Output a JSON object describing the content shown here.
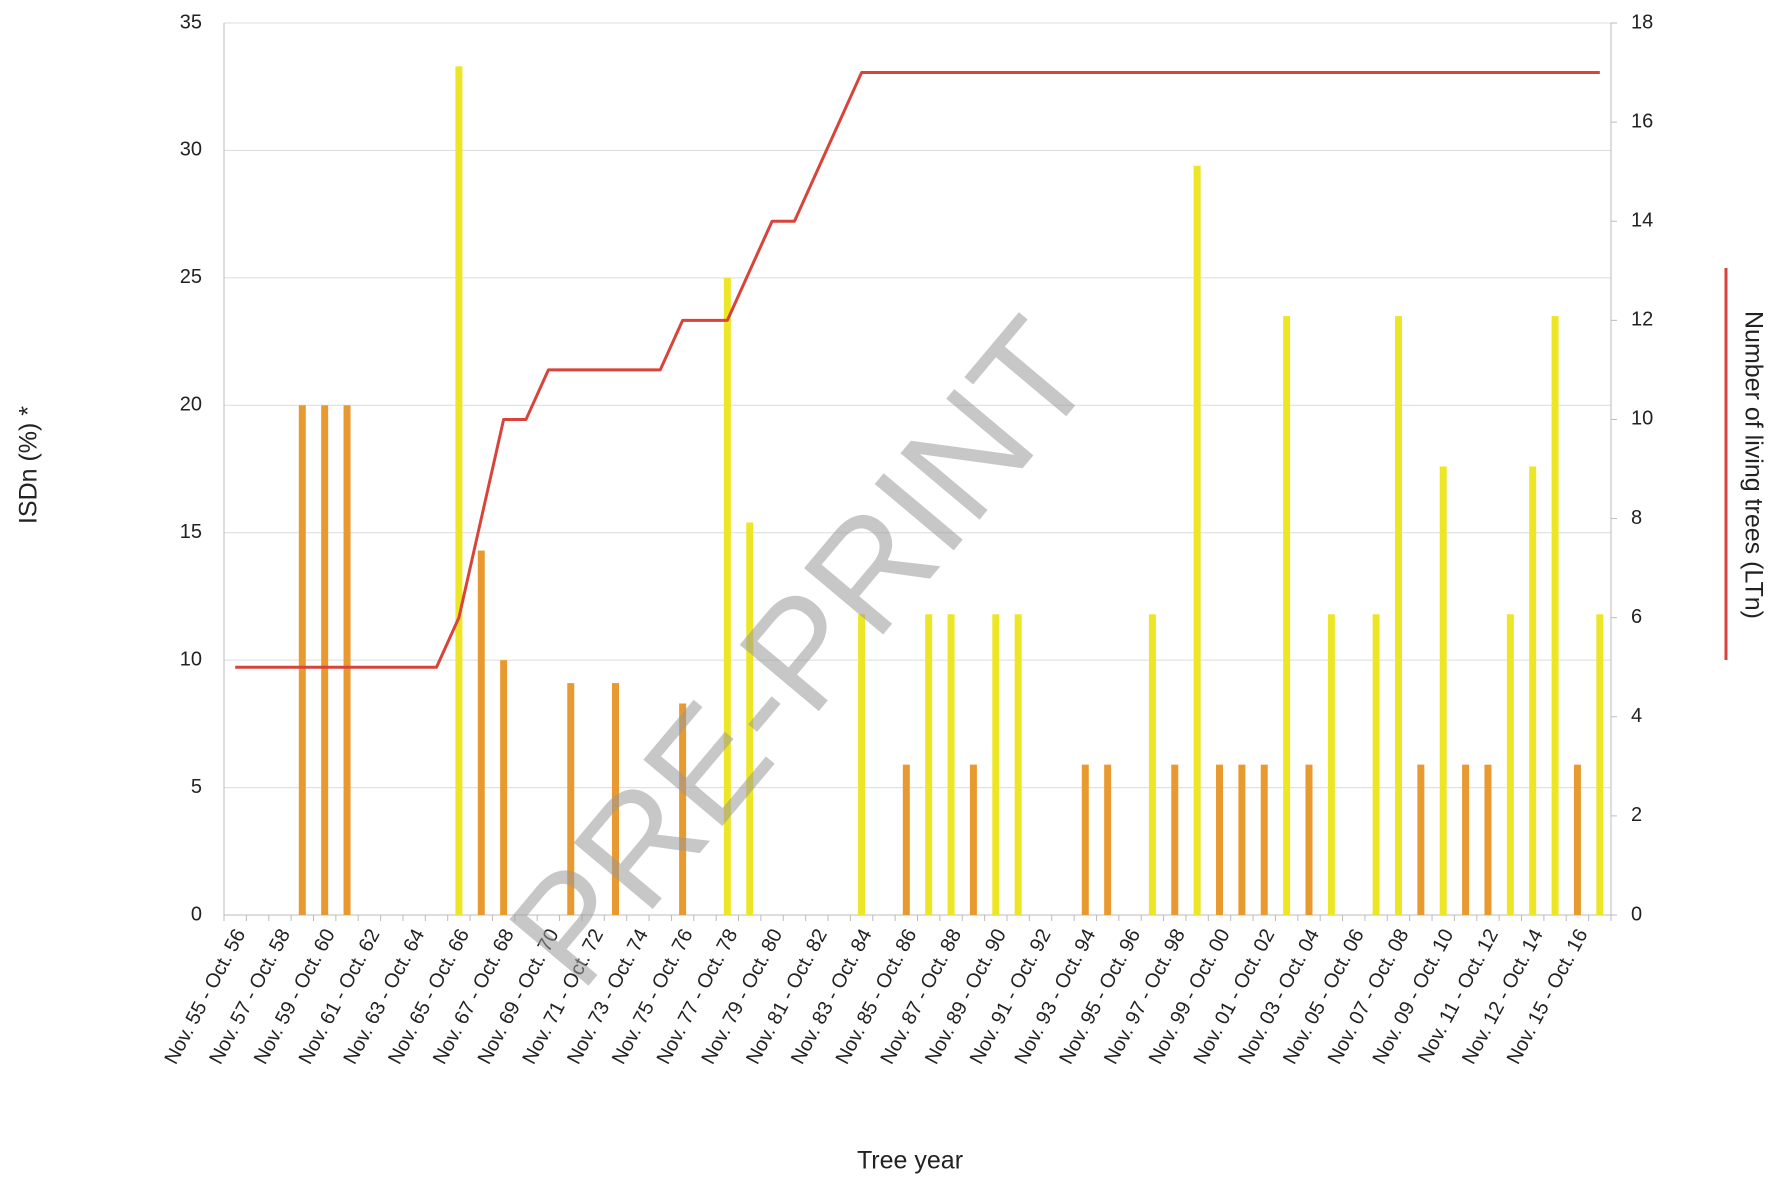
{
  "chart_data": {
    "type": "bar_line",
    "watermark": "PRE-PRINT",
    "x_label": "Tree year",
    "y_label": "ISDn (%) *",
    "y2_label": "Number of living trees (LTn)",
    "categories": [
      "Nov. 55 - Oct. 56",
      null,
      "Nov. 57 - Oct. 58",
      null,
      "Nov. 59 - Oct. 60",
      null,
      "Nov. 61 - Oct. 62",
      null,
      "Nov. 63 - Oct. 64",
      null,
      "Nov. 65 - Oct. 66",
      null,
      "Nov. 67 - Oct. 68",
      null,
      "Nov. 69 - Oct. 70",
      null,
      "Nov. 71 - Oct. 72",
      null,
      "Nov. 73 - Oct. 74",
      null,
      "Nov. 75 - Oct. 76",
      null,
      "Nov. 77 - Oct. 78",
      null,
      "Nov. 79 - Oct. 80",
      null,
      "Nov. 81 - Oct. 82",
      null,
      "Nov. 83 - Oct. 84",
      null,
      "Nov. 85 - Oct. 86",
      null,
      "Nov. 87 - Oct. 88",
      null,
      "Nov. 89 - Oct. 90",
      null,
      "Nov. 91 - Oct. 92",
      null,
      "Nov. 93 - Oct. 94",
      null,
      "Nov. 95 - Oct. 96",
      null,
      "Nov. 97 - Oct. 98",
      null,
      "Nov. 99 - Oct. 00",
      null,
      "Nov. 01 - Oct. 02",
      null,
      "Nov. 03 - Oct. 04",
      null,
      "Nov. 05 - Oct. 06",
      null,
      "Nov. 07 - Oct. 08",
      null,
      "Nov. 09 - Oct. 10",
      null,
      "Nov. 11 - Oct. 12",
      null,
      "Nov. 12 - Oct. 14",
      null,
      "Nov. 15 - Oct. 16",
      null
    ],
    "series": [
      {
        "type": "bar",
        "color": "#e89a30",
        "values": [
          null,
          null,
          null,
          20,
          20,
          20,
          null,
          null,
          null,
          null,
          null,
          14.3,
          10,
          null,
          null,
          9.1,
          null,
          9.1,
          null,
          null,
          8.3,
          null,
          null,
          null,
          null,
          null,
          null,
          null,
          null,
          null,
          5.9,
          null,
          null,
          5.9,
          null,
          null,
          null,
          null,
          5.9,
          5.9,
          null,
          null,
          5.9,
          null,
          5.9,
          5.9,
          5.9,
          null,
          5.9,
          null,
          null,
          null,
          null,
          5.9,
          null,
          5.9,
          5.9,
          null,
          null,
          null,
          5.9,
          null
        ]
      },
      {
        "type": "bar",
        "color": "#ede626",
        "values": [
          null,
          null,
          null,
          null,
          null,
          null,
          null,
          null,
          null,
          null,
          33.3,
          null,
          null,
          null,
          null,
          null,
          null,
          null,
          null,
          null,
          null,
          null,
          25,
          15.4,
          null,
          null,
          null,
          null,
          11.8,
          null,
          null,
          11.8,
          11.8,
          null,
          11.8,
          11.8,
          null,
          null,
          null,
          null,
          null,
          11.8,
          null,
          29.4,
          null,
          null,
          null,
          23.5,
          null,
          11.8,
          null,
          11.8,
          23.5,
          null,
          17.6,
          null,
          null,
          11.8,
          17.6,
          23.5,
          null,
          11.8
        ]
      },
      {
        "type": "line",
        "axis": "y2",
        "color": "#d9443a",
        "values": [
          5,
          5,
          5,
          5,
          5,
          5,
          5,
          5,
          5,
          5,
          6,
          8,
          10,
          10,
          11,
          11,
          11,
          11,
          11,
          11,
          12,
          12,
          12,
          13,
          14,
          14,
          15,
          16,
          17,
          17,
          17,
          17,
          17,
          17,
          17,
          17,
          17,
          17,
          17,
          17,
          17,
          17,
          17,
          17,
          17,
          17,
          17,
          17,
          17,
          17,
          17,
          17,
          17,
          17,
          17,
          17,
          17,
          17,
          17,
          17,
          17,
          17
        ]
      }
    ],
    "ylim": [
      0,
      35
    ],
    "yticks": [
      0,
      5,
      10,
      15,
      20,
      25,
      30,
      35
    ],
    "y2lim": [
      0,
      18
    ],
    "y2ticks": [
      0,
      2,
      4,
      6,
      8,
      10,
      12,
      14,
      16,
      18
    ],
    "grid": true
  }
}
